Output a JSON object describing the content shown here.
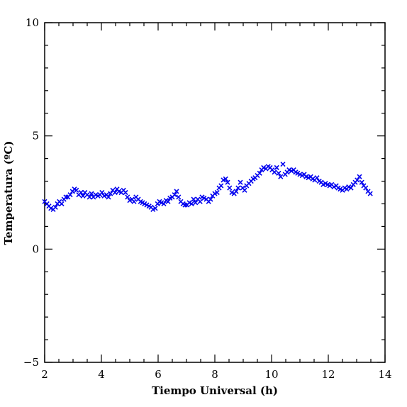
{
  "chart_data": {
    "type": "scatter",
    "title": "",
    "xlabel": "Tiempo Universal (h)",
    "ylabel": "Temperatura (ºC)",
    "xlim": [
      2,
      14
    ],
    "ylim": [
      -5,
      10
    ],
    "x_ticks": [
      2,
      4,
      6,
      8,
      10,
      12,
      14
    ],
    "y_ticks": [
      -5,
      0,
      5,
      10
    ],
    "x_tick_labels": [
      "2",
      "4",
      "6",
      "8",
      "10",
      "12",
      "14"
    ],
    "y_tick_labels": [
      "−5",
      "0",
      "5",
      "10"
    ],
    "marker": "x",
    "color": "#0000ee",
    "grid": false,
    "series": [
      {
        "points": [
          [
            2.0,
            2.1
          ],
          [
            2.08,
            2.0
          ],
          [
            2.15,
            1.9
          ],
          [
            2.22,
            1.8
          ],
          [
            2.3,
            1.75
          ],
          [
            2.38,
            1.85
          ],
          [
            2.45,
            2.0
          ],
          [
            2.52,
            2.1
          ],
          [
            2.6,
            2.0
          ],
          [
            2.68,
            2.2
          ],
          [
            2.75,
            2.3
          ],
          [
            2.82,
            2.3
          ],
          [
            2.9,
            2.4
          ],
          [
            2.98,
            2.55
          ],
          [
            3.05,
            2.65
          ],
          [
            3.12,
            2.6
          ],
          [
            3.2,
            2.4
          ],
          [
            3.28,
            2.5
          ],
          [
            3.35,
            2.35
          ],
          [
            3.42,
            2.5
          ],
          [
            3.5,
            2.4
          ],
          [
            3.58,
            2.3
          ],
          [
            3.65,
            2.45
          ],
          [
            3.72,
            2.3
          ],
          [
            3.8,
            2.4
          ],
          [
            3.88,
            2.35
          ],
          [
            3.95,
            2.4
          ],
          [
            4.02,
            2.5
          ],
          [
            4.1,
            2.35
          ],
          [
            4.18,
            2.4
          ],
          [
            4.25,
            2.3
          ],
          [
            4.32,
            2.45
          ],
          [
            4.4,
            2.6
          ],
          [
            4.48,
            2.5
          ],
          [
            4.55,
            2.65
          ],
          [
            4.62,
            2.55
          ],
          [
            4.7,
            2.5
          ],
          [
            4.78,
            2.6
          ],
          [
            4.85,
            2.5
          ],
          [
            4.92,
            2.3
          ],
          [
            5.0,
            2.15
          ],
          [
            5.08,
            2.2
          ],
          [
            5.15,
            2.1
          ],
          [
            5.22,
            2.3
          ],
          [
            5.3,
            2.2
          ],
          [
            5.38,
            2.1
          ],
          [
            5.45,
            2.05
          ],
          [
            5.52,
            2.0
          ],
          [
            5.6,
            1.95
          ],
          [
            5.68,
            1.9
          ],
          [
            5.75,
            1.85
          ],
          [
            5.82,
            1.75
          ],
          [
            5.9,
            1.8
          ],
          [
            5.98,
            2.0
          ],
          [
            6.05,
            2.1
          ],
          [
            6.12,
            2.05
          ],
          [
            6.2,
            2.0
          ],
          [
            6.28,
            2.15
          ],
          [
            6.35,
            2.1
          ],
          [
            6.42,
            2.25
          ],
          [
            6.5,
            2.3
          ],
          [
            6.58,
            2.4
          ],
          [
            6.65,
            2.55
          ],
          [
            6.72,
            2.3
          ],
          [
            6.8,
            2.1
          ],
          [
            6.88,
            2.0
          ],
          [
            6.95,
            1.95
          ],
          [
            7.02,
            1.95
          ],
          [
            7.1,
            2.05
          ],
          [
            7.18,
            2.0
          ],
          [
            7.25,
            2.2
          ],
          [
            7.32,
            2.05
          ],
          [
            7.4,
            2.2
          ],
          [
            7.48,
            2.1
          ],
          [
            7.55,
            2.3
          ],
          [
            7.62,
            2.25
          ],
          [
            7.7,
            2.2
          ],
          [
            7.78,
            2.1
          ],
          [
            7.85,
            2.2
          ],
          [
            7.92,
            2.35
          ],
          [
            8.0,
            2.45
          ],
          [
            8.08,
            2.5
          ],
          [
            8.15,
            2.7
          ],
          [
            8.22,
            2.8
          ],
          [
            8.3,
            3.05
          ],
          [
            8.38,
            3.1
          ],
          [
            8.45,
            2.95
          ],
          [
            8.52,
            2.7
          ],
          [
            8.6,
            2.5
          ],
          [
            8.68,
            2.45
          ],
          [
            8.75,
            2.55
          ],
          [
            8.82,
            2.7
          ],
          [
            8.9,
            2.95
          ],
          [
            8.98,
            2.7
          ],
          [
            9.05,
            2.6
          ],
          [
            9.12,
            2.8
          ],
          [
            9.2,
            2.9
          ],
          [
            9.28,
            3.0
          ],
          [
            9.35,
            3.1
          ],
          [
            9.42,
            3.15
          ],
          [
            9.5,
            3.25
          ],
          [
            9.58,
            3.35
          ],
          [
            9.65,
            3.5
          ],
          [
            9.72,
            3.6
          ],
          [
            9.8,
            3.55
          ],
          [
            9.88,
            3.65
          ],
          [
            9.95,
            3.6
          ],
          [
            10.02,
            3.5
          ],
          [
            10.1,
            3.4
          ],
          [
            10.18,
            3.6
          ],
          [
            10.25,
            3.35
          ],
          [
            10.32,
            3.2
          ],
          [
            10.4,
            3.75
          ],
          [
            10.48,
            3.3
          ],
          [
            10.55,
            3.4
          ],
          [
            10.62,
            3.5
          ],
          [
            10.7,
            3.45
          ],
          [
            10.78,
            3.5
          ],
          [
            10.85,
            3.4
          ],
          [
            10.92,
            3.35
          ],
          [
            11.0,
            3.3
          ],
          [
            11.08,
            3.25
          ],
          [
            11.15,
            3.3
          ],
          [
            11.22,
            3.2
          ],
          [
            11.3,
            3.15
          ],
          [
            11.38,
            3.2
          ],
          [
            11.45,
            3.1
          ],
          [
            11.52,
            3.05
          ],
          [
            11.6,
            3.15
          ],
          [
            11.68,
            3.0
          ],
          [
            11.75,
            2.95
          ],
          [
            11.82,
            2.85
          ],
          [
            11.9,
            2.9
          ],
          [
            11.98,
            2.85
          ],
          [
            12.05,
            2.8
          ],
          [
            12.12,
            2.85
          ],
          [
            12.2,
            2.75
          ],
          [
            12.28,
            2.8
          ],
          [
            12.35,
            2.7
          ],
          [
            12.42,
            2.65
          ],
          [
            12.5,
            2.6
          ],
          [
            12.58,
            2.7
          ],
          [
            12.65,
            2.65
          ],
          [
            12.72,
            2.75
          ],
          [
            12.8,
            2.7
          ],
          [
            12.88,
            2.85
          ],
          [
            12.95,
            2.95
          ],
          [
            13.02,
            3.05
          ],
          [
            13.1,
            3.2
          ],
          [
            13.18,
            2.95
          ],
          [
            13.25,
            2.8
          ],
          [
            13.32,
            2.7
          ],
          [
            13.4,
            2.55
          ],
          [
            13.48,
            2.45
          ]
        ]
      }
    ]
  }
}
